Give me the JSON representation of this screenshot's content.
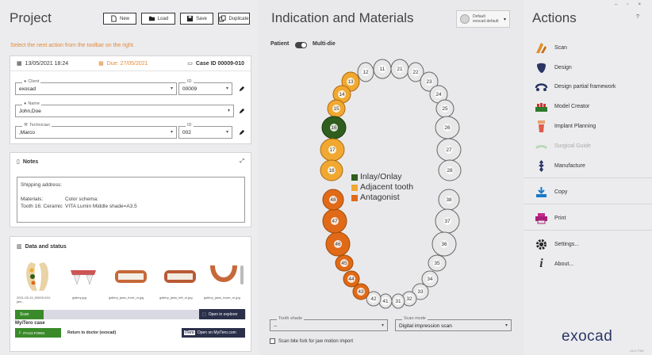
{
  "project": {
    "title": "Project",
    "toolbar": {
      "new": "New",
      "load": "Load",
      "save": "Save",
      "duplicate": "Duplicate"
    },
    "hint": "Select the next action from the toolbar on the right.",
    "info": {
      "date": "13/05/2021 18:24",
      "due": "Due: 27/05/2021",
      "case_id": "Case ID 00009-010",
      "client_label": "Client",
      "client_value": "exocad",
      "client_id_label": "ID",
      "client_id_value": "00009",
      "name_label": "Name",
      "name_value": "John,Doe",
      "technician_label": "Technician",
      "technician_value": ",Marco",
      "technician_id_label": "ID",
      "technician_id_value": "002"
    },
    "notes": {
      "title": "Notes",
      "line1": "Shipping address:",
      "materials_label": "Materials:",
      "materials_value": "Tooth 16: Ceramic",
      "color_label": "Color schema:",
      "color_value": "VITA Lumin Middle shade=A3.5"
    },
    "data_status": {
      "title": "Data and status",
      "thumbs": [
        "2021-05-13_00009-010-jaw...",
        "gallery.jpg",
        "gallery_jaws_front_m.jpg",
        "gallery_jaws_left_m.jpg",
        "gallery_jaws_lower_m.jpg"
      ],
      "scan_badge": "Scan",
      "open_explorer": "Open in explorer",
      "mytero_title": "MyiTero case",
      "mytero_status": "ITAG3 FORM",
      "return_doctor": "Return to doctor (exocad)",
      "itero_logo": "iTero",
      "open_mytero": "Open on MyiTero.com"
    }
  },
  "indication": {
    "title": "Indication and Materials",
    "preset_line1": "Default",
    "preset_line2": "exocad default",
    "toggle_left": "Patient",
    "toggle_right": "Multi-die",
    "legend": [
      {
        "label": "Inlay/Onlay",
        "color": "#2f5e1e"
      },
      {
        "label": "Adjacent tooth",
        "color": "#f0a830"
      },
      {
        "label": "Antagonist",
        "color": "#e06a18"
      }
    ],
    "teeth_upper": [
      "12",
      "11",
      "21",
      "22",
      "23",
      "24",
      "25",
      "26",
      "27",
      "28",
      "13",
      "14",
      "15",
      "16",
      "17",
      "18"
    ],
    "teeth_lower": [
      "38",
      "37",
      "36",
      "35",
      "34",
      "33",
      "32",
      "31",
      "41",
      "42",
      "43",
      "44",
      "45",
      "46",
      "47",
      "48"
    ],
    "shade_label": "Tooth shade",
    "shade_value": "--",
    "scanmode_label": "Scan mode",
    "scanmode_value": "Digital impression scan",
    "bite_fork": "Scan bite fork for jaw motion import"
  },
  "actions": {
    "title": "Actions",
    "help": "?",
    "items": [
      "Scan",
      "Design",
      "Design partial framework",
      "Model Creator",
      "Implant Planning",
      "Surgical Guide",
      "Manufacture",
      "Copy",
      "Print",
      "Settings...",
      "About..."
    ],
    "brand": "exocad",
    "version": "v3.0.7784"
  }
}
